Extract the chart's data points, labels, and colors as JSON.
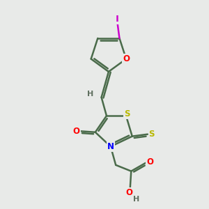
{
  "background_color": "#e8eae8",
  "bond_color": "#4a6b4a",
  "atom_colors": {
    "O": "#ff0000",
    "N": "#0000ff",
    "S": "#b8b800",
    "I": "#cc00cc",
    "H": "#607060",
    "C": "#4a6b4a"
  },
  "bond_width": 1.8,
  "font_size": 8.5,
  "fig_size": [
    3.0,
    3.0
  ],
  "dpi": 100,
  "xlim": [
    0,
    10
  ],
  "ylim": [
    0,
    10
  ]
}
